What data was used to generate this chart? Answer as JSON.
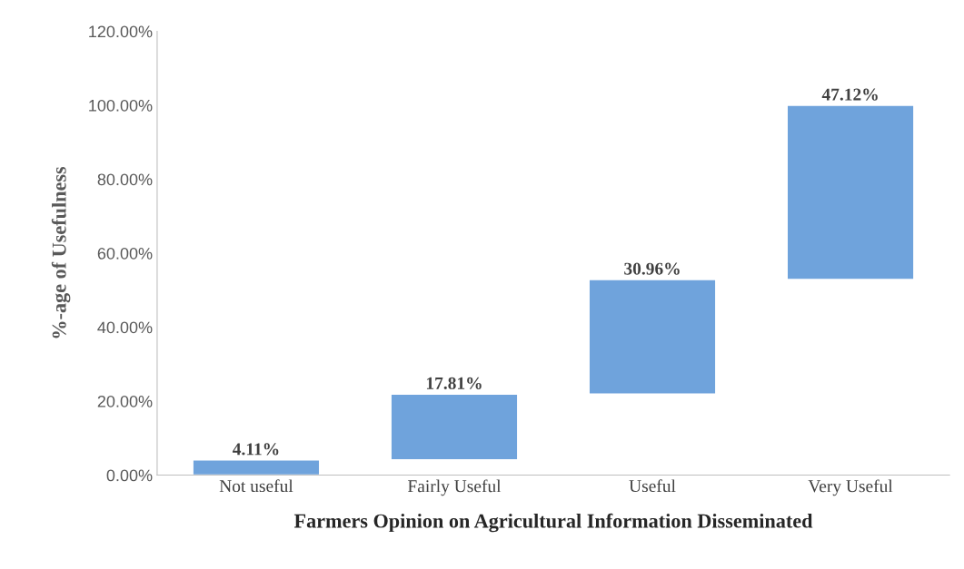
{
  "chart_data": {
    "type": "bar",
    "xlabel": "Farmers Opinion on Agricultural Information Disseminated",
    "ylabel": "%-age of Usefulness",
    "categories": [
      "Not useful",
      "Fairly Useful",
      "Useful",
      "Very Useful"
    ],
    "values": [
      4.11,
      17.81,
      30.96,
      47.12
    ],
    "base": [
      0,
      4.11,
      21.92,
      52.88
    ],
    "value_labels": [
      "4.11%",
      "17.81%",
      "30.96%",
      "47.12%"
    ],
    "color": "#6fa3dc",
    "ylim": [
      0,
      120
    ],
    "yticks": [
      {
        "value": 0,
        "label": "0.00%"
      },
      {
        "value": 20,
        "label": "20.00%"
      },
      {
        "value": 40,
        "label": "40.00%"
      },
      {
        "value": 60,
        "label": "60.00%"
      },
      {
        "value": 80,
        "label": "80.00%"
      },
      {
        "value": 100,
        "label": "100.00%"
      },
      {
        "value": 120,
        "label": "120.00%"
      }
    ],
    "grid": false
  }
}
